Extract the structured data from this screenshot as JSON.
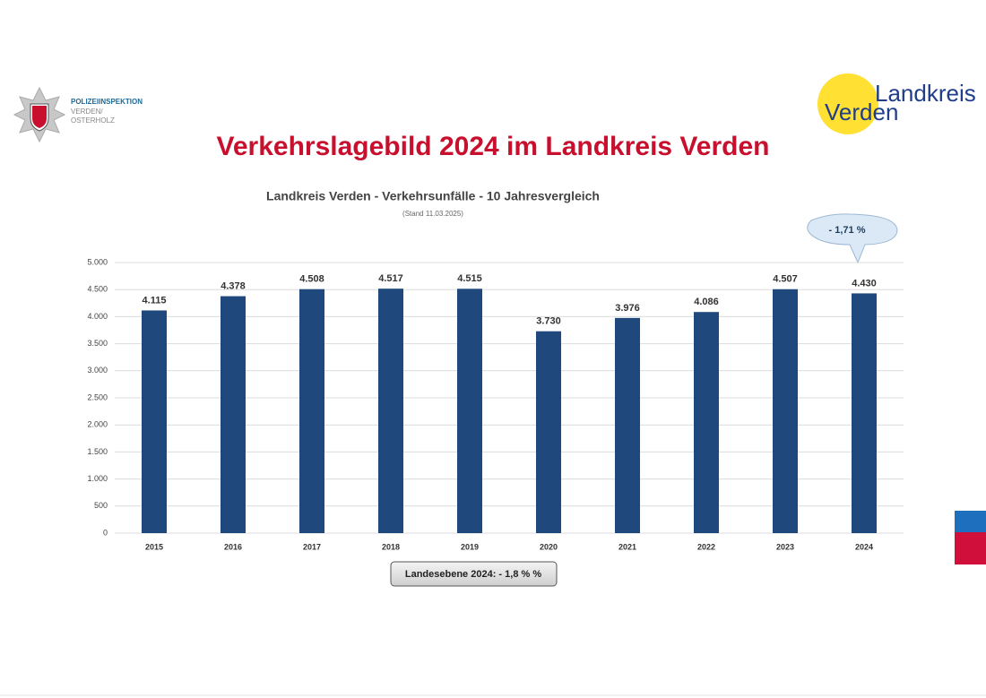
{
  "header": {
    "police_lines": [
      "POLIZEIINSPEKTION",
      "VERDEN/",
      "OSTERHOLZ"
    ],
    "logo_top": "Landkreis",
    "logo_bottom": "Verden",
    "title": "Verkehrslagebild 2024 im Landkreis Verden"
  },
  "chart_data": {
    "type": "bar",
    "title": "Landkreis Verden - Verkehrsunfälle - 10 Jahresvergleich",
    "subtitle": "(Stand 11.03.2025)",
    "categories": [
      "2015",
      "2016",
      "2017",
      "2018",
      "2019",
      "2020",
      "2021",
      "2022",
      "2023",
      "2024"
    ],
    "values": [
      4115,
      4378,
      4508,
      4517,
      4515,
      3730,
      3976,
      4086,
      4507,
      4430
    ],
    "value_labels": [
      "4.115",
      "4.378",
      "4.508",
      "4.517",
      "4.515",
      "3.730",
      "3.976",
      "4.086",
      "4.507",
      "4.430"
    ],
    "color": "#1f497d",
    "ylim": [
      0,
      5000
    ],
    "yticks": [
      0,
      500,
      {
        "value": 1000,
        "label": "1.000"
      },
      {
        "value": 1500,
        "label": "1.500"
      },
      {
        "value": 2000,
        "label": "2.000"
      },
      {
        "value": 2500,
        "label": "2.500"
      },
      {
        "value": 3000,
        "label": "3.000"
      },
      {
        "value": 3500,
        "label": "3.500"
      },
      {
        "value": 4000,
        "label": "4.000"
      },
      {
        "value": 4500,
        "label": "4.500"
      },
      {
        "value": 5000,
        "label": "5.000"
      }
    ],
    "grid": true,
    "callout": "- 1,71 %",
    "note": "Landesebene 2024: - 1,8 % %"
  }
}
